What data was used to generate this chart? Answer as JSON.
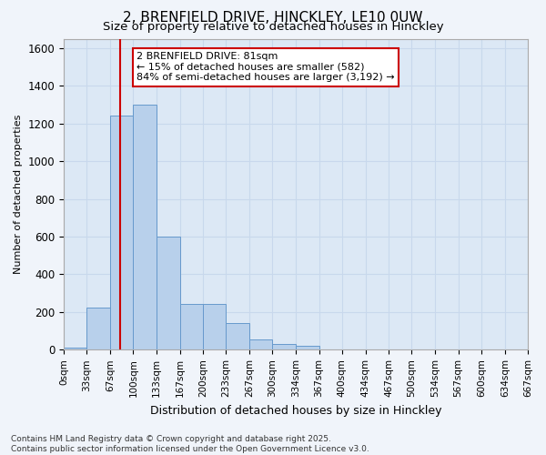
{
  "title_line1": "2, BRENFIELD DRIVE, HINCKLEY, LE10 0UW",
  "title_line2": "Size of property relative to detached houses in Hinckley",
  "xlabel": "Distribution of detached houses by size in Hinckley",
  "ylabel": "Number of detached properties",
  "bar_bins": [
    0,
    33,
    67,
    100,
    133,
    167,
    200,
    233,
    267,
    300,
    334,
    367,
    400,
    434,
    467,
    500,
    534,
    567,
    600,
    634,
    667
  ],
  "bar_values": [
    10,
    225,
    1240,
    1300,
    600,
    245,
    245,
    140,
    55,
    30,
    20,
    0,
    0,
    0,
    0,
    0,
    0,
    0,
    0,
    0
  ],
  "bar_color": "#b8d0eb",
  "bar_edge_color": "#6699cc",
  "grid_color": "#c8d8ec",
  "bg_color": "#dce8f5",
  "plot_bg_color": "#dce8f5",
  "fig_bg_color": "#f0f4fa",
  "property_sqm": 81,
  "vline_color": "#cc0000",
  "annotation_line1": "2 BRENFIELD DRIVE: 81sqm",
  "annotation_line2": "← 15% of detached houses are smaller (582)",
  "annotation_line3": "84% of semi-detached houses are larger (3,192) →",
  "annotation_box_color": "#ffffff",
  "annotation_box_edge": "#cc0000",
  "footer_text": "Contains HM Land Registry data © Crown copyright and database right 2025.\nContains public sector information licensed under the Open Government Licence v3.0.",
  "tick_labels": [
    "0sqm",
    "33sqm",
    "67sqm",
    "100sqm",
    "133sqm",
    "167sqm",
    "200sqm",
    "233sqm",
    "267sqm",
    "300sqm",
    "334sqm",
    "367sqm",
    "400sqm",
    "434sqm",
    "467sqm",
    "500sqm",
    "534sqm",
    "567sqm",
    "600sqm",
    "634sqm",
    "667sqm"
  ],
  "ylim": [
    0,
    1650
  ],
  "yticks": [
    0,
    200,
    400,
    600,
    800,
    1000,
    1200,
    1400,
    1600
  ],
  "title1_fontsize": 11,
  "title2_fontsize": 9.5,
  "ylabel_fontsize": 8,
  "xlabel_fontsize": 9,
  "tick_fontsize": 7.5,
  "ytick_fontsize": 8.5,
  "footer_fontsize": 6.5,
  "annot_fontsize": 8
}
